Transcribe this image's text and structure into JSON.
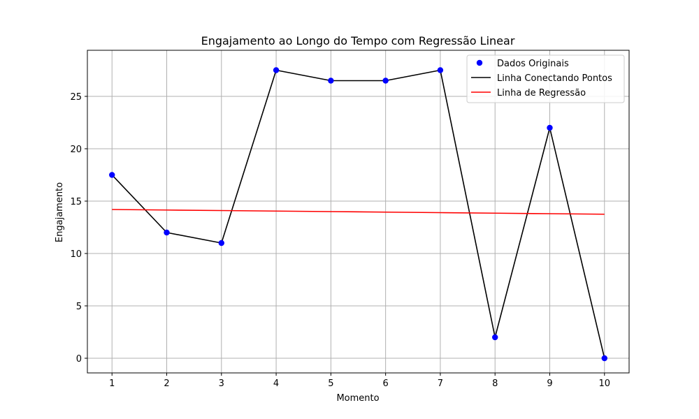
{
  "chart_data": {
    "type": "line",
    "title": "Engajamento ao Longo do Tempo com Regressão Linear",
    "xlabel": "Momento",
    "ylabel": "Engajamento",
    "x": [
      1,
      2,
      3,
      4,
      5,
      6,
      7,
      8,
      9,
      10
    ],
    "x_ticks": [
      "1",
      "2",
      "3",
      "4",
      "5",
      "6",
      "7",
      "8",
      "9",
      "10"
    ],
    "y_ticks": [
      "0",
      "5",
      "10",
      "15",
      "20",
      "25"
    ],
    "xlim": [
      0.55,
      10.45
    ],
    "ylim": [
      -1.4,
      29.4
    ],
    "grid": true,
    "legend_position": "top-right",
    "series": [
      {
        "name": "Dados Originais",
        "kind": "scatter",
        "color": "#0000ff",
        "values": [
          17.5,
          12,
          11,
          27.5,
          26.5,
          26.5,
          27.5,
          2,
          22,
          0
        ]
      },
      {
        "name": "Linha Conectando Pontos",
        "kind": "line",
        "color": "#000000",
        "values": [
          17.5,
          12,
          11,
          27.5,
          26.5,
          26.5,
          27.5,
          2,
          22,
          0
        ]
      },
      {
        "name": "Linha de Regressão",
        "kind": "line",
        "color": "#ff0000",
        "values": [
          14.2,
          14.15,
          14.1,
          14.05,
          14.0,
          13.95,
          13.9,
          13.85,
          13.8,
          13.75
        ]
      }
    ]
  }
}
